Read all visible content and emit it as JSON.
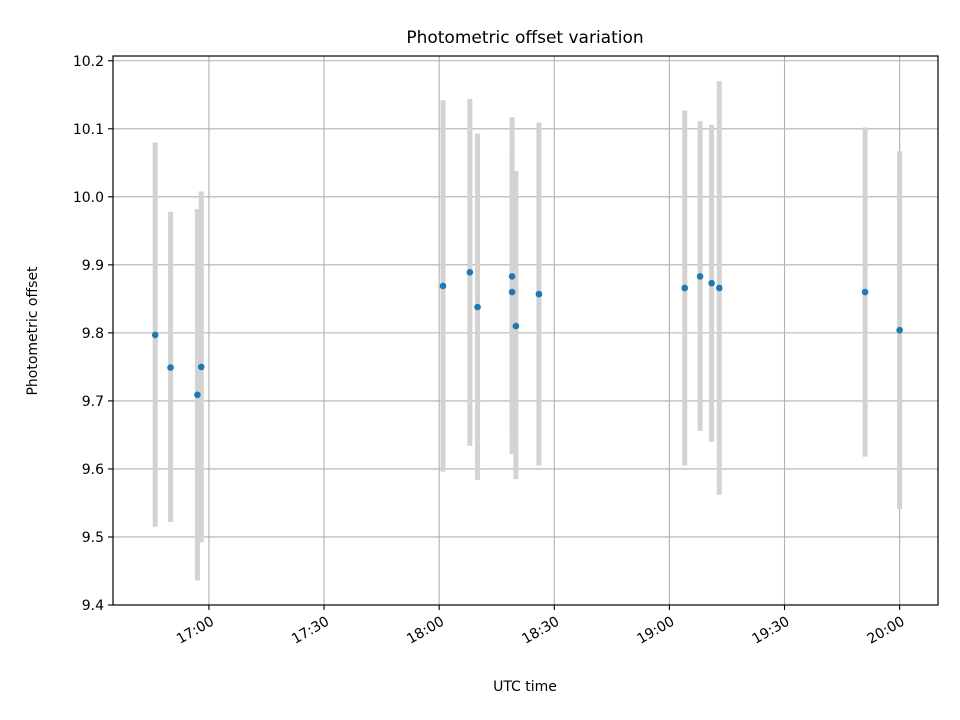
{
  "chart_data": {
    "type": "scatter",
    "title": "Photometric offset variation",
    "xlabel": "UTC time",
    "ylabel": "Photometric offset",
    "xlim": [
      "16:35",
      "20:10"
    ],
    "ylim": [
      9.4,
      10.207
    ],
    "grid": true,
    "x_ticks": [
      "17:00",
      "17:30",
      "18:00",
      "18:30",
      "19:00",
      "19:30",
      "20:00"
    ],
    "y_ticks": [
      9.4,
      9.5,
      9.6,
      9.7,
      9.8,
      9.9,
      10.0,
      10.1,
      10.2
    ],
    "x_tick_labels": [
      "17:00",
      "17:30",
      "18:00",
      "18:30",
      "19:00",
      "19:30",
      "20:00"
    ],
    "y_tick_labels": [
      "9.4",
      "9.5",
      "9.6",
      "9.7",
      "9.8",
      "9.9",
      "10.0",
      "10.1",
      "10.2"
    ],
    "colors": {
      "point": "#1f77b4",
      "errorbar": "#d3d3d3",
      "grid": "#b0b0b0"
    },
    "points": [
      {
        "x": "16:46",
        "y": 9.797,
        "yerr_low": 9.515,
        "yerr_high": 10.08
      },
      {
        "x": "16:50",
        "y": 9.749,
        "yerr_low": 9.522,
        "yerr_high": 9.978
      },
      {
        "x": "16:57",
        "y": 9.709,
        "yerr_low": 9.436,
        "yerr_high": 9.982
      },
      {
        "x": "16:58",
        "y": 9.75,
        "yerr_low": 9.492,
        "yerr_high": 10.008
      },
      {
        "x": "18:01",
        "y": 9.869,
        "yerr_low": 9.596,
        "yerr_high": 10.142
      },
      {
        "x": "18:08",
        "y": 9.889,
        "yerr_low": 9.634,
        "yerr_high": 10.144
      },
      {
        "x": "18:10",
        "y": 9.838,
        "yerr_low": 9.584,
        "yerr_high": 10.093
      },
      {
        "x": "18:19",
        "y": 9.86,
        "yerr_low": 9.648,
        "yerr_high": 10.069
      },
      {
        "x": "18:19",
        "y": 9.883,
        "yerr_low": 9.622,
        "yerr_high": 10.117
      },
      {
        "x": "18:20",
        "y": 9.81,
        "yerr_low": 9.585,
        "yerr_high": 10.038
      },
      {
        "x": "18:26",
        "y": 9.857,
        "yerr_low": 9.605,
        "yerr_high": 10.109
      },
      {
        "x": "19:04",
        "y": 9.866,
        "yerr_low": 9.605,
        "yerr_high": 10.127
      },
      {
        "x": "19:08",
        "y": 9.883,
        "yerr_low": 9.656,
        "yerr_high": 10.111
      },
      {
        "x": "19:11",
        "y": 9.873,
        "yerr_low": 9.64,
        "yerr_high": 10.106
      },
      {
        "x": "19:13",
        "y": 9.866,
        "yerr_low": 9.562,
        "yerr_high": 10.17
      },
      {
        "x": "19:51",
        "y": 9.86,
        "yerr_low": 9.618,
        "yerr_high": 10.102
      },
      {
        "x": "20:00",
        "y": 9.804,
        "yerr_low": 9.541,
        "yerr_high": 10.067
      }
    ]
  }
}
